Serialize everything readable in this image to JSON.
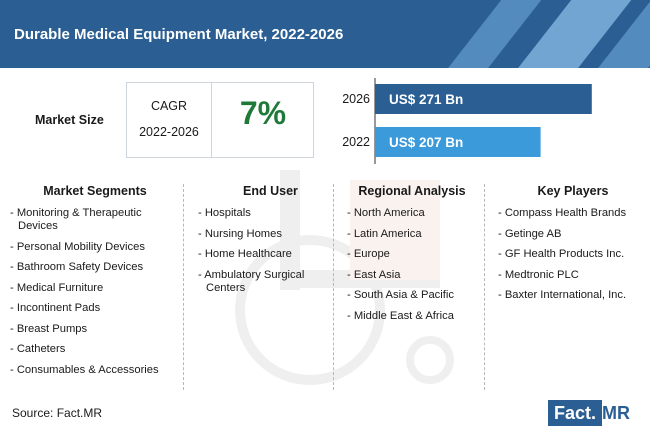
{
  "header": {
    "title": "Durable Medical Equipment Market, 2022-2026"
  },
  "market_size": {
    "label": "Market Size",
    "cagr_label": "CAGR",
    "cagr_period": "2022-2026",
    "cagr_value": "7%"
  },
  "chart_data": {
    "type": "bar",
    "orientation": "horizontal",
    "categories": [
      "2026",
      "2022"
    ],
    "values": [
      271,
      207
    ],
    "value_labels": [
      "US$ 271 Bn",
      "US$ 207 Bn"
    ],
    "bar_colors": [
      "#2b5f93",
      "#3b9ad9"
    ],
    "xlim": [
      0,
      300
    ]
  },
  "columns": [
    {
      "heading": "Market Segments",
      "items": [
        "- Monitoring & Therapeutic Devices",
        "- Personal Mobility Devices",
        "- Bathroom Safety Devices",
        "- Medical Furniture",
        "- Incontinent Pads",
        "- Breast Pumps",
        "- Catheters",
        "- Consumables & Accessories"
      ]
    },
    {
      "heading": "End User",
      "items": [
        "- Hospitals",
        "- Nursing Homes",
        "- Home Healthcare",
        "- Ambulatory Surgical Centers"
      ]
    },
    {
      "heading": "Regional Analysis",
      "items": [
        "- North America",
        "- Latin America",
        "- Europe",
        "- East Asia",
        "- South Asia & Pacific",
        "- Middle East & Africa"
      ]
    },
    {
      "heading": "Key Players",
      "items": [
        "- Compass Health Brands",
        "- Getinge AB",
        "- GF Health Products Inc.",
        "- Medtronic PLC",
        "- Baxter International, Inc."
      ]
    }
  ],
  "footer": {
    "source": "Source: Fact.MR",
    "logo_fact": "Fact.",
    "logo_mr": "MR"
  }
}
